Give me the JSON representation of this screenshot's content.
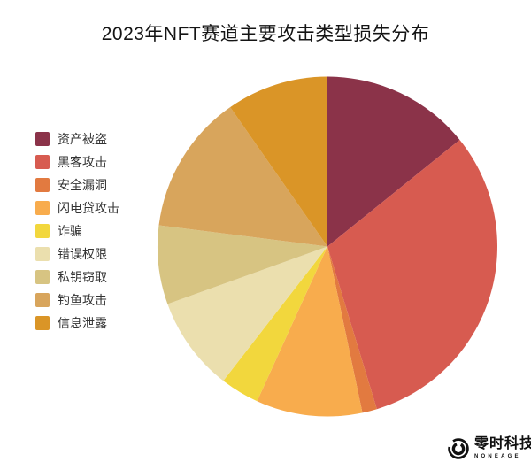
{
  "chart_data": {
    "type": "pie",
    "title": "2023年NFT赛道主要攻击类型损失分布",
    "legend_position": "left",
    "start_angle_deg_from_12_oclock": 0,
    "direction": "clockwise",
    "values_are_estimated_percent": true,
    "slices": [
      {
        "label": "资产被盗",
        "value": 14.2,
        "color": "#8B3349"
      },
      {
        "label": "黑客攻击",
        "value": 31.1,
        "color": "#D75B50"
      },
      {
        "label": "安全漏洞",
        "value": 1.4,
        "color": "#E27A40"
      },
      {
        "label": "闪电贷攻击",
        "value": 10.1,
        "color": "#F8AC4D"
      },
      {
        "label": "诈骗",
        "value": 3.7,
        "color": "#F2D73D"
      },
      {
        "label": "错误权限",
        "value": 9.0,
        "color": "#EBDFAE"
      },
      {
        "label": "私钥窃取",
        "value": 7.5,
        "color": "#D7C482"
      },
      {
        "label": "钓鱼攻击",
        "value": 13.3,
        "color": "#D8A55C"
      },
      {
        "label": "信息泄露",
        "value": 9.7,
        "color": "#DA9527"
      }
    ]
  },
  "logo": {
    "name_cn": "零时科技",
    "name_en": "NONEAGE"
  }
}
